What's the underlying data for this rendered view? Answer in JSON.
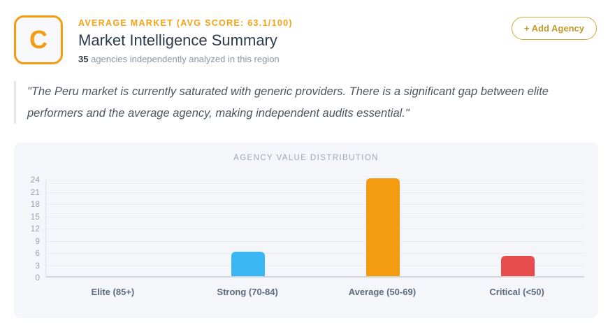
{
  "header": {
    "logo_letter": "C",
    "kicker": "AVERAGE MARKET (AVG SCORE: 63.1/100)",
    "title": "Market Intelligence Summary",
    "subtitle_count": "35",
    "subtitle_rest": " agencies independently analyzed in this region",
    "add_button_label": "+ Add Agency"
  },
  "quote": {
    "text": "\"The Peru market is currently saturated with generic providers. There is a significant gap between elite performers and the average agency, making independent audits essential.\""
  },
  "colors": {
    "accent_orange": "#f39c12",
    "button_gold": "#c39a2b",
    "bar_blue": "#3ab7f3",
    "bar_orange": "#f39c12",
    "bar_red": "#e74c4c",
    "panel_bg": "#f4f6f9"
  },
  "chart_data": {
    "type": "bar",
    "title": "AGENCY VALUE DISTRIBUTION",
    "categories": [
      "Elite (85+)",
      "Strong (70-84)",
      "Average (50-69)",
      "Critical (<50)"
    ],
    "values": [
      0,
      6,
      24,
      5
    ],
    "bar_colors": [
      null,
      "#3ab7f3",
      "#f39c12",
      "#e74c4c"
    ],
    "xlabel": "",
    "ylabel": "",
    "ylim": [
      0,
      24
    ],
    "yticks": [
      0,
      3,
      6,
      9,
      12,
      15,
      18,
      21,
      24
    ],
    "grid": true,
    "legend": false
  }
}
